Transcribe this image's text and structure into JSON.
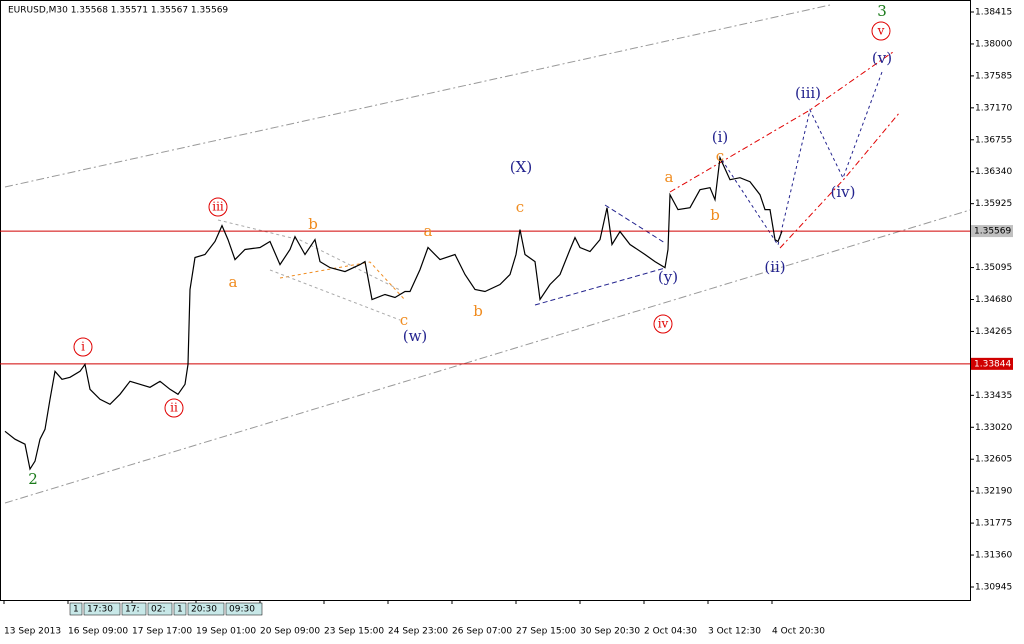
{
  "chart_data": {
    "type": "line",
    "title": "EURUSD,M30  1.35568 1.35571 1.35567 1.35569",
    "x": [
      5,
      15,
      25,
      30,
      35,
      40,
      45,
      50,
      55,
      62,
      70,
      80,
      85,
      90,
      100,
      110,
      120,
      130,
      140,
      150,
      160,
      170,
      178,
      185,
      188,
      190,
      195,
      205,
      215,
      222,
      228,
      235,
      245,
      260,
      270,
      280,
      290,
      295,
      305,
      315,
      320,
      330,
      345,
      360,
      365,
      372,
      385,
      395,
      405,
      410,
      420,
      428,
      440,
      455,
      465,
      475,
      485,
      500,
      510,
      516,
      520,
      525,
      535,
      540,
      550,
      560,
      570,
      575,
      580,
      590,
      600,
      607,
      612,
      620,
      630,
      645,
      655,
      665,
      668,
      670,
      678,
      690,
      700,
      710,
      715,
      720,
      730,
      740,
      750,
      760,
      765,
      770,
      775,
      778,
      782
    ],
    "values": [
      1.32968,
      1.32865,
      1.328,
      1.32476,
      1.32579,
      1.32865,
      1.32994,
      1.33383,
      1.33747,
      1.33643,
      1.33669,
      1.33747,
      1.33837,
      1.33513,
      1.33383,
      1.33319,
      1.33448,
      1.33617,
      1.33578,
      1.33539,
      1.33617,
      1.33513,
      1.33448,
      1.33578,
      1.33837,
      1.3481,
      1.35225,
      1.35264,
      1.35433,
      1.3564,
      1.35458,
      1.35199,
      1.35329,
      1.35355,
      1.35433,
      1.35134,
      1.35329,
      1.35497,
      1.35264,
      1.35458,
      1.35173,
      1.35095,
      1.35043,
      1.35134,
      1.35173,
      1.3468,
      1.34745,
      1.34706,
      1.34784,
      1.34784,
      1.35069,
      1.35355,
      1.35199,
      1.35264,
      1.35005,
      1.3481,
      1.34784,
      1.34875,
      1.35005,
      1.35264,
      1.35588,
      1.35264,
      1.35173,
      1.3468,
      1.34875,
      1.35005,
      1.35329,
      1.35484,
      1.35355,
      1.35303,
      1.35458,
      1.35873,
      1.35394,
      1.35562,
      1.35394,
      1.35264,
      1.35173,
      1.35095,
      1.35329,
      1.36042,
      1.35848,
      1.35873,
      1.36107,
      1.36133,
      1.35977,
      1.36522,
      1.36237,
      1.36263,
      1.36211,
      1.36042,
      1.35848,
      1.35848,
      1.35458,
      1.35433,
      1.35569
    ],
    "color": "#000000",
    "xlim": [
      0,
      970
    ],
    "ylim": [
      1.30776,
      1.38571
    ],
    "xticks": [
      {
        "value": 4,
        "label": "13 Sep 2013"
      },
      {
        "value": 68,
        "label": "16 Sep 09:00"
      },
      {
        "value": 132,
        "label": "17 Sep 17:00"
      },
      {
        "value": 196,
        "label": "19 Sep 01:00"
      },
      {
        "value": 260,
        "label": "20 Sep 09:00"
      },
      {
        "value": 324,
        "label": "23 Sep 15:00"
      },
      {
        "value": 388,
        "label": "24 Sep 23:00"
      },
      {
        "value": 452,
        "label": "26 Sep 07:00"
      },
      {
        "value": 516,
        "label": "27 Sep 15:00"
      },
      {
        "value": 580,
        "label": "30 Sep 20:30"
      },
      {
        "value": 644,
        "label": "2 Oct 04:30"
      },
      {
        "value": 708,
        "label": "3 Oct 12:30"
      },
      {
        "value": 772,
        "label": "4 Oct 20:30"
      }
    ],
    "yticks": [
      1.38415,
      {
        "value": 1.38,
        "label": "1.38000"
      },
      1.37585,
      {
        "value": 1.3717,
        "label": "1.37170"
      },
      1.36755,
      {
        "value": 1.3634,
        "label": "1.36340"
      },
      1.35925,
      1.35095,
      {
        "value": 1.3468,
        "label": "1.34680"
      },
      1.34265,
      1.33435,
      {
        "value": 1.3302,
        "label": "1.33020"
      },
      1.32605,
      {
        "value": 1.3219,
        "label": "1.32190"
      },
      1.31775,
      {
        "value": 1.3136,
        "label": "1.31360"
      },
      1.30945
    ],
    "hlines": [
      {
        "value": 1.35569,
        "color": "#d00000",
        "label_bg": "#c0c0c0",
        "label_color": "#000000"
      },
      {
        "value": 1.33844,
        "color": "#d00000",
        "label_bg": "#d00000",
        "label_color": "#ffffff"
      }
    ],
    "annotations": [
      {
        "text": "2",
        "color": "#1a7a1a"
      },
      {
        "text": "i",
        "color": "#e00000",
        "circled": true
      },
      {
        "text": "ii",
        "color": "#e00000",
        "circled": true
      },
      {
        "text": "iii",
        "color": "#e00000",
        "circled": true
      },
      {
        "text": "iv",
        "color": "#e00000",
        "circled": true
      },
      {
        "text": "v",
        "color": "#e00000",
        "circled": true
      },
      {
        "text": "3",
        "color": "#1a7a1a"
      },
      {
        "text": "a",
        "color": "#f08c20"
      },
      {
        "text": "b",
        "color": "#f08c20"
      },
      {
        "text": "c",
        "color": "#f08c20"
      },
      {
        "text": "a",
        "color": "#f08c20"
      },
      {
        "text": "b",
        "color": "#f08c20"
      },
      {
        "text": "c",
        "color": "#f08c20"
      },
      {
        "text": "a",
        "color": "#f08c20"
      },
      {
        "text": "b",
        "color": "#f08c20"
      },
      {
        "text": "c",
        "color": "#f08c20"
      },
      {
        "text": "(w)",
        "color": "#23238e"
      },
      {
        "text": "(X)",
        "color": "#23238e"
      },
      {
        "text": "(y)",
        "color": "#23238e"
      },
      {
        "text": "(i)",
        "color": "#23238e"
      },
      {
        "text": "(ii)",
        "color": "#23238e"
      },
      {
        "text": "(iii)",
        "color": "#23238e"
      },
      {
        "text": "(iv)",
        "color": "#23238e"
      },
      {
        "text": "(v)",
        "color": "#23238e"
      }
    ],
    "time_markers": [
      "1",
      "17:30",
      "17:",
      "02:",
      "1",
      "20:30",
      "09:30"
    ]
  }
}
